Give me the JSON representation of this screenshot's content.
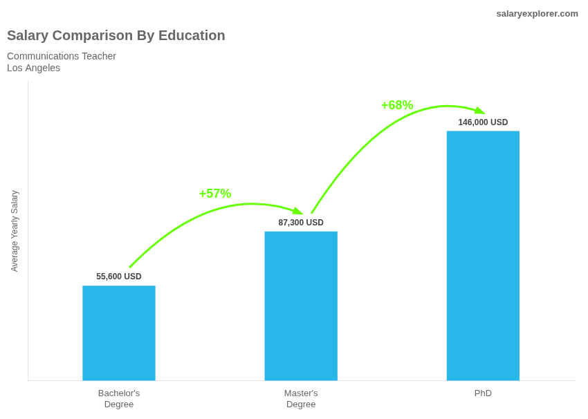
{
  "chart_data": {
    "type": "bar",
    "title": "Salary Comparison By Education",
    "subtitle": [
      "Communications Teacher",
      "Los Angeles"
    ],
    "watermark": "salaryexplorer.com",
    "y_label": "Average Yearly Salary",
    "categories": [
      "Bachelor's\nDegree",
      "Master's\nDegree",
      "PhD"
    ],
    "values": [
      55600,
      87300,
      146000
    ],
    "value_labels": [
      "55,600 USD",
      "87,300 USD",
      "146,000 USD"
    ],
    "data_labels": true,
    "color": "#29b6e8",
    "annotations": [
      {
        "text": "+57%",
        "color": "#66ff00"
      },
      {
        "text": "+68%",
        "color": "#66ff00"
      }
    ],
    "ylim": [
      0,
      175000
    ],
    "grid": false,
    "tick_labels": "x"
  }
}
